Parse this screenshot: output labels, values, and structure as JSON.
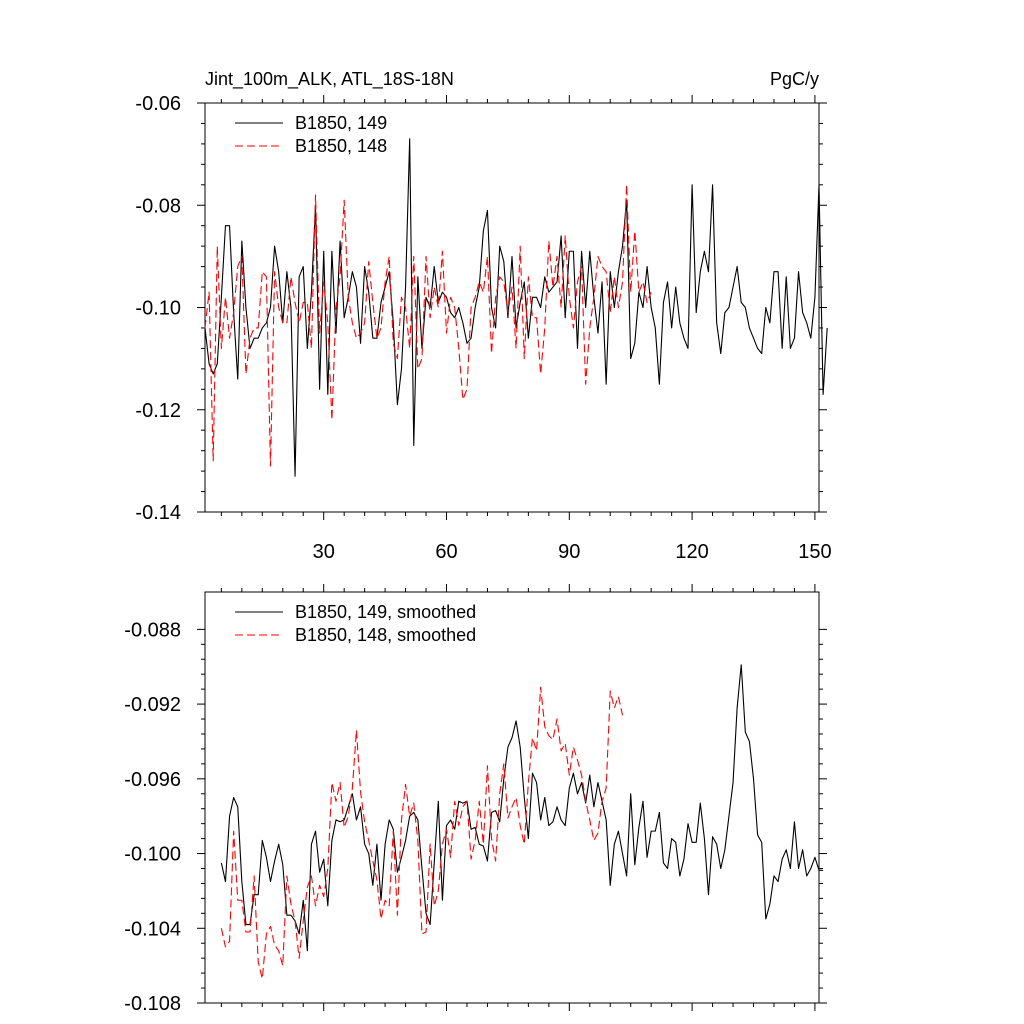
{
  "title_left": "Jint_100m_ALK, ATL_18S-18N",
  "title_right": "PgC/y",
  "chart_data": [
    {
      "type": "line",
      "xlim": [
        1,
        151
      ],
      "ylim": [
        -0.14,
        -0.06
      ],
      "xticks": [
        30,
        60,
        90,
        120,
        150
      ],
      "yticks": [
        -0.14,
        -0.12,
        -0.1,
        -0.08,
        -0.06
      ],
      "ytick_labels": [
        "-0.14",
        "-0.12",
        "-0.10",
        "-0.08",
        "-0.06"
      ],
      "legend_position": "top-left",
      "series": [
        {
          "name": "B1850, 149",
          "color": "#000000",
          "dash": "solid",
          "values": [
            -0.104,
            -0.111,
            -0.113,
            -0.111,
            -0.098,
            -0.084,
            -0.084,
            -0.101,
            -0.114,
            -0.087,
            -0.1,
            -0.108,
            -0.106,
            -0.106,
            -0.104,
            -0.103,
            -0.1,
            -0.088,
            -0.093,
            -0.103,
            -0.093,
            -0.1,
            -0.133,
            -0.094,
            -0.092,
            -0.108,
            -0.097,
            -0.08,
            -0.116,
            -0.089,
            -0.117,
            -0.089,
            -0.105,
            -0.087,
            -0.102,
            -0.098,
            -0.093,
            -0.096,
            -0.107,
            -0.092,
            -0.097,
            -0.106,
            -0.106,
            -0.099,
            -0.096,
            -0.093,
            -0.103,
            -0.119,
            -0.112,
            -0.096,
            -0.067,
            -0.127,
            -0.094,
            -0.108,
            -0.098,
            -0.1,
            -0.092,
            -0.099,
            -0.097,
            -0.098,
            -0.101,
            -0.102,
            -0.1,
            -0.103,
            -0.107,
            -0.106,
            -0.1,
            -0.096,
            -0.085,
            -0.081,
            -0.1,
            -0.104,
            -0.088,
            -0.091,
            -0.102,
            -0.09,
            -0.104,
            -0.099,
            -0.095,
            -0.106,
            -0.098,
            -0.098,
            -0.1,
            -0.094,
            -0.097,
            -0.096,
            -0.095,
            -0.086,
            -0.102,
            -0.089,
            -0.089,
            -0.108,
            -0.089,
            -0.1,
            -0.089,
            -0.098,
            -0.105,
            -0.095,
            -0.115,
            -0.093,
            -0.1,
            -0.093,
            -0.088,
            -0.079,
            -0.11,
            -0.107,
            -0.097,
            -0.1,
            -0.092,
            -0.1,
            -0.104,
            -0.115,
            -0.099,
            -0.095,
            -0.104,
            -0.096,
            -0.103,
            -0.106,
            -0.108,
            -0.076,
            -0.101,
            -0.093,
            -0.089,
            -0.093,
            -0.076,
            -0.103,
            -0.109,
            -0.101,
            -0.1,
            -0.096,
            -0.092,
            -0.099,
            -0.1,
            -0.104,
            -0.106,
            -0.108,
            -0.109,
            -0.1,
            -0.103,
            -0.093,
            -0.093,
            -0.108,
            -0.094,
            -0.108,
            -0.106,
            -0.093,
            -0.101,
            -0.103,
            -0.106,
            -0.098,
            -0.076,
            -0.117,
            -0.104
          ]
        },
        {
          "name": "B1850, 148",
          "color": "#ff0000",
          "dash": "dashed",
          "values": [
            -0.104,
            -0.097,
            -0.13,
            -0.088,
            -0.108,
            -0.098,
            -0.106,
            -0.101,
            -0.092,
            -0.09,
            -0.113,
            -0.106,
            -0.104,
            -0.104,
            -0.093,
            -0.094,
            -0.131,
            -0.093,
            -0.1,
            -0.103,
            -0.103,
            -0.094,
            -0.099,
            -0.103,
            -0.099,
            -0.099,
            -0.108,
            -0.078,
            -0.105,
            -0.095,
            -0.103,
            -0.122,
            -0.1,
            -0.094,
            -0.079,
            -0.098,
            -0.103,
            -0.106,
            -0.105,
            -0.103,
            -0.091,
            -0.099,
            -0.106,
            -0.104,
            -0.095,
            -0.09,
            -0.107,
            -0.11,
            -0.098,
            -0.1,
            -0.108,
            -0.09,
            -0.112,
            -0.11,
            -0.09,
            -0.102,
            -0.096,
            -0.1,
            -0.089,
            -0.105,
            -0.098,
            -0.1,
            -0.108,
            -0.118,
            -0.116,
            -0.1,
            -0.098,
            -0.095,
            -0.097,
            -0.09,
            -0.109,
            -0.098,
            -0.094,
            -0.095,
            -0.101,
            -0.096,
            -0.108,
            -0.088,
            -0.11,
            -0.094,
            -0.102,
            -0.102,
            -0.113,
            -0.104,
            -0.087,
            -0.096,
            -0.09,
            -0.1,
            -0.086,
            -0.098,
            -0.104,
            -0.095,
            -0.092,
            -0.115,
            -0.104,
            -0.098,
            -0.09,
            -0.092,
            -0.093,
            -0.101,
            -0.094,
            -0.1,
            -0.095,
            -0.076,
            -0.097,
            -0.085,
            -0.097,
            -0.095,
            -0.099,
            -0.097
          ]
        }
      ]
    },
    {
      "type": "line",
      "xlim": [
        1,
        151
      ],
      "ylim": [
        -0.108,
        -0.086
      ],
      "xticks": [
        30,
        60,
        90,
        120,
        150
      ],
      "yticks": [
        -0.108,
        -0.104,
        -0.1,
        -0.096,
        -0.092,
        -0.088
      ],
      "ytick_labels": [
        "-0.108",
        "-0.104",
        "-0.100",
        "-0.096",
        "-0.092",
        "-0.088"
      ],
      "legend_position": "top-left",
      "series": [
        {
          "name": "B1850, 149, smoothed",
          "color": "#000000",
          "dash": "solid",
          "x_start": 5,
          "values": [
            -0.1005,
            -0.1015,
            -0.098,
            -0.097,
            -0.0975,
            -0.1015,
            -0.1038,
            -0.1038,
            -0.1022,
            -0.1022,
            -0.0993,
            -0.1002,
            -0.1015,
            -0.1004,
            -0.0995,
            -0.1006,
            -0.1033,
            -0.1033,
            -0.1036,
            -0.1043,
            -0.1025,
            -0.1052,
            -0.0995,
            -0.0988,
            -0.101,
            -0.1003,
            -0.1028,
            -0.0993,
            -0.0982,
            -0.0983,
            -0.0982,
            -0.0975,
            -0.0968,
            -0.0982,
            -0.0975,
            -0.0995,
            -0.1,
            -0.1017,
            -0.0995,
            -0.1025,
            -0.0995,
            -0.0982,
            -0.0987,
            -0.101,
            -0.1002,
            -0.0993,
            -0.098,
            -0.0978,
            -0.0982,
            -0.1008,
            -0.1032,
            -0.1038,
            -0.1005,
            -0.0972,
            -0.1025,
            -0.0985,
            -0.0982,
            -0.0987,
            -0.0972,
            -0.0973,
            -0.0972,
            -0.0987,
            -0.0986,
            -0.0995,
            -0.0996,
            -0.1004,
            -0.0978,
            -0.0977,
            -0.0983,
            -0.096,
            -0.0943,
            -0.0938,
            -0.0929,
            -0.0943,
            -0.097,
            -0.0992,
            -0.0957,
            -0.0962,
            -0.0982,
            -0.097,
            -0.0985,
            -0.0983,
            -0.0975,
            -0.0982,
            -0.0985,
            -0.0965,
            -0.0957,
            -0.0968,
            -0.0962,
            -0.0973,
            -0.0958,
            -0.0975,
            -0.0962,
            -0.0972,
            -0.0982,
            -0.1017,
            -0.0995,
            -0.0988,
            -0.1,
            -0.1012,
            -0.0968,
            -0.1006,
            -0.0986,
            -0.0972,
            -0.1002,
            -0.0988,
            -0.0988,
            -0.0978,
            -0.1005,
            -0.1008,
            -0.0992,
            -0.0994,
            -0.1012,
            -0.1003,
            -0.0984,
            -0.0994,
            -0.0994,
            -0.0973,
            -0.0992,
            -0.1022,
            -0.0991,
            -0.0995,
            -0.1008,
            -0.0998,
            -0.098,
            -0.0962,
            -0.0922,
            -0.0899,
            -0.0935,
            -0.094,
            -0.096,
            -0.099,
            -0.0994,
            -0.1035,
            -0.1027,
            -0.1012,
            -0.1015,
            -0.1003,
            -0.0998,
            -0.1008,
            -0.0983,
            -0.1008,
            -0.0998,
            -0.1012,
            -0.1008,
            -0.1002,
            -0.1009,
            -0.1009
          ]
        },
        {
          "name": "B1850, 148, smoothed",
          "color": "#ff0000",
          "dash": "dashed",
          "x_start": 5,
          "values": [
            -0.104,
            -0.105,
            -0.1047,
            -0.0988,
            -0.1025,
            -0.1025,
            -0.1042,
            -0.1042,
            -0.1012,
            -0.1058,
            -0.1067,
            -0.1043,
            -0.1039,
            -0.1049,
            -0.1052,
            -0.106,
            -0.1012,
            -0.1027,
            -0.1036,
            -0.1056,
            -0.1036,
            -0.1018,
            -0.1012,
            -0.1028,
            -0.1017,
            -0.1023,
            -0.1008,
            -0.0962,
            -0.0972,
            -0.0962,
            -0.0986,
            -0.098,
            -0.0965,
            -0.0934,
            -0.0967,
            -0.0983,
            -0.0993,
            -0.1004,
            -0.1014,
            -0.1035,
            -0.1025,
            -0.1028,
            -0.0988,
            -0.1033,
            -0.0982,
            -0.0963,
            -0.098,
            -0.0973,
            -0.0993,
            -0.1043,
            -0.1042,
            -0.0995,
            -0.1028,
            -0.102,
            -0.0995,
            -0.0987,
            -0.1002,
            -0.0972,
            -0.0985,
            -0.0975,
            -0.0972,
            -0.1003,
            -0.0993,
            -0.0972,
            -0.0995,
            -0.0953,
            -0.0992,
            -0.1004,
            -0.0968,
            -0.0952,
            -0.0981,
            -0.0975,
            -0.097,
            -0.0985,
            -0.0995,
            -0.0962,
            -0.0938,
            -0.0945,
            -0.0911,
            -0.0932,
            -0.0937,
            -0.0939,
            -0.0928,
            -0.0945,
            -0.0941,
            -0.0958,
            -0.0943,
            -0.095,
            -0.0958,
            -0.0972,
            -0.0982,
            -0.0993,
            -0.0989,
            -0.0972,
            -0.0965,
            -0.0913,
            -0.0922,
            -0.0916,
            -0.0926
          ]
        }
      ]
    }
  ]
}
